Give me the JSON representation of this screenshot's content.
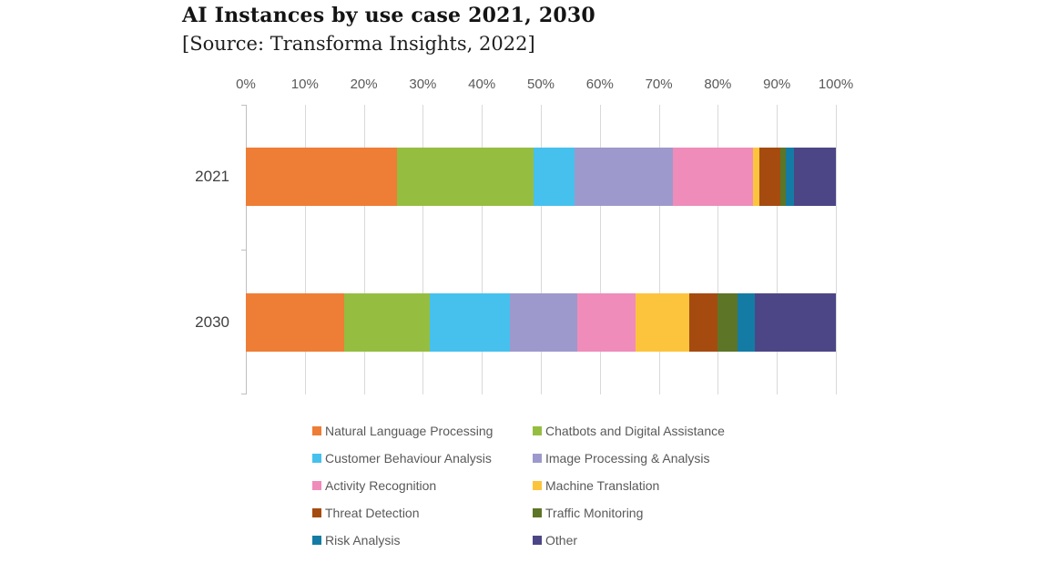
{
  "title": "AI Instances by use case 2021, 2030",
  "subtitle": "[Source: Transforma Insights, 2022]",
  "chart_data": {
    "type": "bar",
    "stacked": true,
    "orientation": "horizontal",
    "title": "AI Instances by use case 2021, 2030",
    "subtitle": "[Source: Transforma Insights, 2022]",
    "categories": [
      "2021",
      "2030"
    ],
    "series": [
      {
        "name": "Natural Language Processing",
        "color": "#EE7D36",
        "values": [
          25.6,
          16.7
        ]
      },
      {
        "name": "Chatbots and Digital Assistance",
        "color": "#95BE41",
        "values": [
          23.1,
          14.5
        ]
      },
      {
        "name": "Customer Behaviour Analysis",
        "color": "#46C1ED",
        "values": [
          7.0,
          13.6
        ]
      },
      {
        "name": "Image Processing & Analysis",
        "color": "#9D99CC",
        "values": [
          16.7,
          11.3
        ]
      },
      {
        "name": "Activity Recognition",
        "color": "#EF8CBA",
        "values": [
          13.6,
          10.0
        ]
      },
      {
        "name": "Machine Translation",
        "color": "#FCC43D",
        "values": [
          1.1,
          9.0
        ]
      },
      {
        "name": "Threat Detection",
        "color": "#A54B10",
        "values": [
          3.5,
          4.8
        ]
      },
      {
        "name": "Traffic Monitoring",
        "color": "#5D7527",
        "values": [
          0.9,
          3.4
        ]
      },
      {
        "name": "Risk Analysis",
        "color": "#147CA4",
        "values": [
          1.4,
          2.9
        ]
      },
      {
        "name": "Other",
        "color": "#4C4687",
        "values": [
          7.1,
          13.8
        ]
      }
    ],
    "xlabel": "",
    "ylabel": "",
    "xlim": [
      0,
      100
    ],
    "x_ticks_percent": [
      0,
      10,
      20,
      30,
      40,
      50,
      60,
      70,
      80,
      90,
      100
    ],
    "tick_labels": [
      "0%",
      "10%",
      "20%",
      "30%",
      "40%",
      "50%",
      "60%",
      "70%",
      "80%",
      "90%",
      "100%"
    ],
    "grid": true,
    "legend_position": "bottom"
  }
}
